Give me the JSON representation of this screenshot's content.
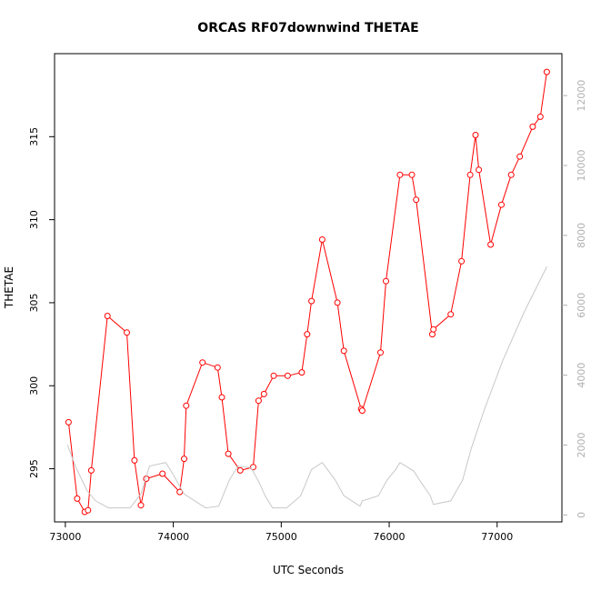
{
  "chart_data": {
    "type": "line",
    "title": "ORCAS RF07downwind THETAE",
    "xlabel": "UTC Seconds",
    "ylabel": "THETAE",
    "xlim": [
      72900,
      77600
    ],
    "ylim": [
      291.8,
      320.0
    ],
    "y2lim": [
      -200,
      13200
    ],
    "x_ticks": [
      73000,
      74000,
      75000,
      76000,
      77000
    ],
    "y_ticks": [
      295,
      300,
      305,
      310,
      315
    ],
    "y2_ticks": [
      0,
      2000,
      4000,
      6000,
      8000,
      10000,
      12000
    ],
    "grid": false,
    "series": [
      {
        "color": "#ff0000",
        "markers": "open-circle",
        "axis": "left",
        "x": [
          73030,
          73110,
          73180,
          73210,
          73240,
          73390,
          73570,
          73640,
          73700,
          73750,
          73900,
          74060,
          74100,
          74120,
          74270,
          74410,
          74450,
          74510,
          74620,
          74740,
          74790,
          74840,
          74930,
          75060,
          75190,
          75240,
          75280,
          75380,
          75520,
          75580,
          75740,
          75750,
          75920,
          75970,
          76100,
          76210,
          76250,
          76400,
          76410,
          76570,
          76670,
          76750,
          76800,
          76830,
          76940,
          77040,
          77130,
          77210,
          77330,
          77400,
          77460
        ],
        "y": [
          297.8,
          293.2,
          292.4,
          292.5,
          294.9,
          304.2,
          303.2,
          295.5,
          292.8,
          294.4,
          294.7,
          293.6,
          295.6,
          298.8,
          301.4,
          301.1,
          299.3,
          295.9,
          294.9,
          295.1,
          299.1,
          299.5,
          300.6,
          300.6,
          300.8,
          303.1,
          305.1,
          308.8,
          305.0,
          302.1,
          298.6,
          298.5,
          302.0,
          306.3,
          312.7,
          312.7,
          311.2,
          303.1,
          303.4,
          304.3,
          307.5,
          312.7,
          315.1,
          313.0,
          308.5,
          310.9,
          312.7,
          313.8,
          315.6,
          316.2,
          318.9
        ]
      },
      {
        "color": "#c8c8c8",
        "markers": "none",
        "axis": "right",
        "x": [
          73020,
          73100,
          73200,
          73280,
          73400,
          73600,
          73700,
          73780,
          73930,
          74000,
          74100,
          74200,
          74300,
          74420,
          74520,
          74600,
          74720,
          74800,
          74850,
          74920,
          75050,
          75180,
          75280,
          75380,
          75500,
          75580,
          75730,
          75750,
          75900,
          75980,
          76060,
          76100,
          76230,
          76280,
          76380,
          76410,
          76570,
          76680,
          76760,
          76880,
          77050,
          77250,
          77460
        ],
        "y": [
          2000,
          1350,
          700,
          400,
          200,
          200,
          600,
          1400,
          1500,
          1150,
          600,
          400,
          200,
          250,
          1000,
          1400,
          1350,
          900,
          550,
          200,
          200,
          550,
          1300,
          1500,
          1000,
          550,
          250,
          400,
          550,
          1000,
          1300,
          1500,
          1250,
          1000,
          550,
          300,
          400,
          1000,
          1900,
          3000,
          4400,
          5800,
          7100
        ]
      }
    ]
  }
}
